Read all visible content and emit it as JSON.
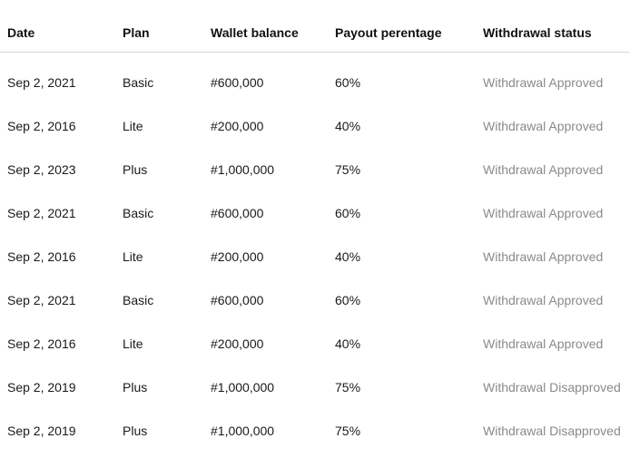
{
  "table": {
    "columns": [
      "Date",
      "Plan",
      "Wallet balance",
      "Payout perentage",
      "Withdrawal status"
    ],
    "rows": [
      {
        "date": "Sep 2, 2021",
        "plan": "Basic",
        "wallet": "#600,000",
        "payout": "60%",
        "status": "Withdrawal Approved"
      },
      {
        "date": "Sep 2, 2016",
        "plan": "Lite",
        "wallet": "#200,000",
        "payout": "40%",
        "status": "Withdrawal Approved"
      },
      {
        "date": "Sep 2, 2023",
        "plan": "Plus",
        "wallet": "#1,000,000",
        "payout": "75%",
        "status": "Withdrawal Approved"
      },
      {
        "date": "Sep 2, 2021",
        "plan": "Basic",
        "wallet": "#600,000",
        "payout": "60%",
        "status": "Withdrawal Approved"
      },
      {
        "date": "Sep 2, 2016",
        "plan": "Lite",
        "wallet": "#200,000",
        "payout": "40%",
        "status": "Withdrawal Approved"
      },
      {
        "date": "Sep 2, 2021",
        "plan": "Basic",
        "wallet": "#600,000",
        "payout": "60%",
        "status": "Withdrawal Approved"
      },
      {
        "date": "Sep 2, 2016",
        "plan": "Lite",
        "wallet": "#200,000",
        "payout": "40%",
        "status": "Withdrawal Approved"
      },
      {
        "date": "Sep 2, 2019",
        "plan": "Plus",
        "wallet": "#1,000,000",
        "payout": "75%",
        "status": "Withdrawal Disapproved"
      },
      {
        "date": "Sep 2, 2019",
        "plan": "Plus",
        "wallet": "#1,000,000",
        "payout": "75%",
        "status": "Withdrawal Disapproved"
      }
    ]
  },
  "colors": {
    "header_text": "#111111",
    "body_text": "#1a1a1a",
    "status_text": "#8a8a8a",
    "divider": "#d9d9d9"
  }
}
